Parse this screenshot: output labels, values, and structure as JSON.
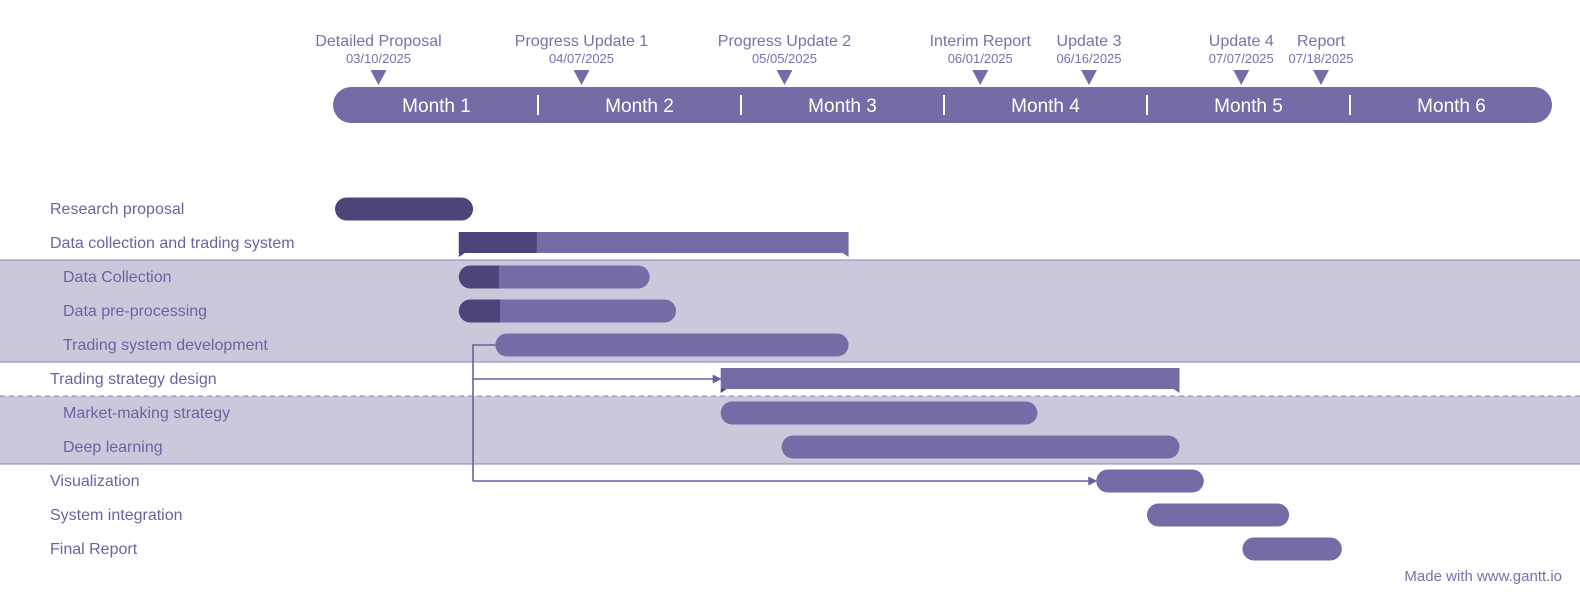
{
  "colors": {
    "primary": "#756ca7",
    "dark": "#4e4479",
    "band": "#ccc8dc",
    "band_line": "#8b82b8",
    "text": "#7a6fab",
    "arrow": "#6a609d"
  },
  "timeline": {
    "months": [
      "Month 1",
      "Month 2",
      "Month 3",
      "Month 4",
      "Month 5",
      "Month 6"
    ]
  },
  "milestones": [
    {
      "name": "Detailed Proposal",
      "date": "03/10/2025"
    },
    {
      "name": "Progress Update 1",
      "date": "04/07/2025"
    },
    {
      "name": "Progress Update 2",
      "date": "05/05/2025"
    },
    {
      "name": "Interim Report",
      "date": "06/01/2025"
    },
    {
      "name": "Update 3",
      "date": "06/16/2025"
    },
    {
      "name": "Update 4",
      "date": "07/07/2025"
    },
    {
      "name": "Report",
      "date": "07/18/2025"
    }
  ],
  "tasks": [
    {
      "label": "Research proposal",
      "level": 0,
      "start": 0.0,
      "end": 0.68,
      "progress": 1.0,
      "kind": "task"
    },
    {
      "label": "Data collection and trading system",
      "level": 0,
      "start": 0.61,
      "end": 2.53,
      "progress": 0.2,
      "kind": "group"
    },
    {
      "label": "Data Collection",
      "level": 1,
      "start": 0.61,
      "end": 1.55,
      "progress": 0.21,
      "kind": "task"
    },
    {
      "label": "Data pre-processing",
      "level": 1,
      "start": 0.61,
      "end": 1.68,
      "progress": 0.19,
      "kind": "task"
    },
    {
      "label": "Trading system development",
      "level": 1,
      "start": 0.79,
      "end": 2.53,
      "progress": 0,
      "kind": "task"
    },
    {
      "label": "Trading strategy design",
      "level": 0,
      "start": 1.9,
      "end": 4.16,
      "progress": 0,
      "kind": "group"
    },
    {
      "label": "Market-making strategy",
      "level": 1,
      "start": 1.9,
      "end": 3.46,
      "progress": 0,
      "kind": "task"
    },
    {
      "label": "Deep learning",
      "level": 1,
      "start": 2.2,
      "end": 4.16,
      "progress": 0,
      "kind": "task"
    },
    {
      "label": "Visualization",
      "level": 0,
      "start": 3.75,
      "end": 4.28,
      "progress": 0,
      "kind": "task"
    },
    {
      "label": "System integration",
      "level": 0,
      "start": 4.0,
      "end": 4.7,
      "progress": 0,
      "kind": "task"
    },
    {
      "label": "Final Report",
      "level": 0,
      "start": 4.47,
      "end": 4.96,
      "progress": 0,
      "kind": "task"
    }
  ],
  "footer": {
    "credit": "Made with www.gantt.io"
  }
}
